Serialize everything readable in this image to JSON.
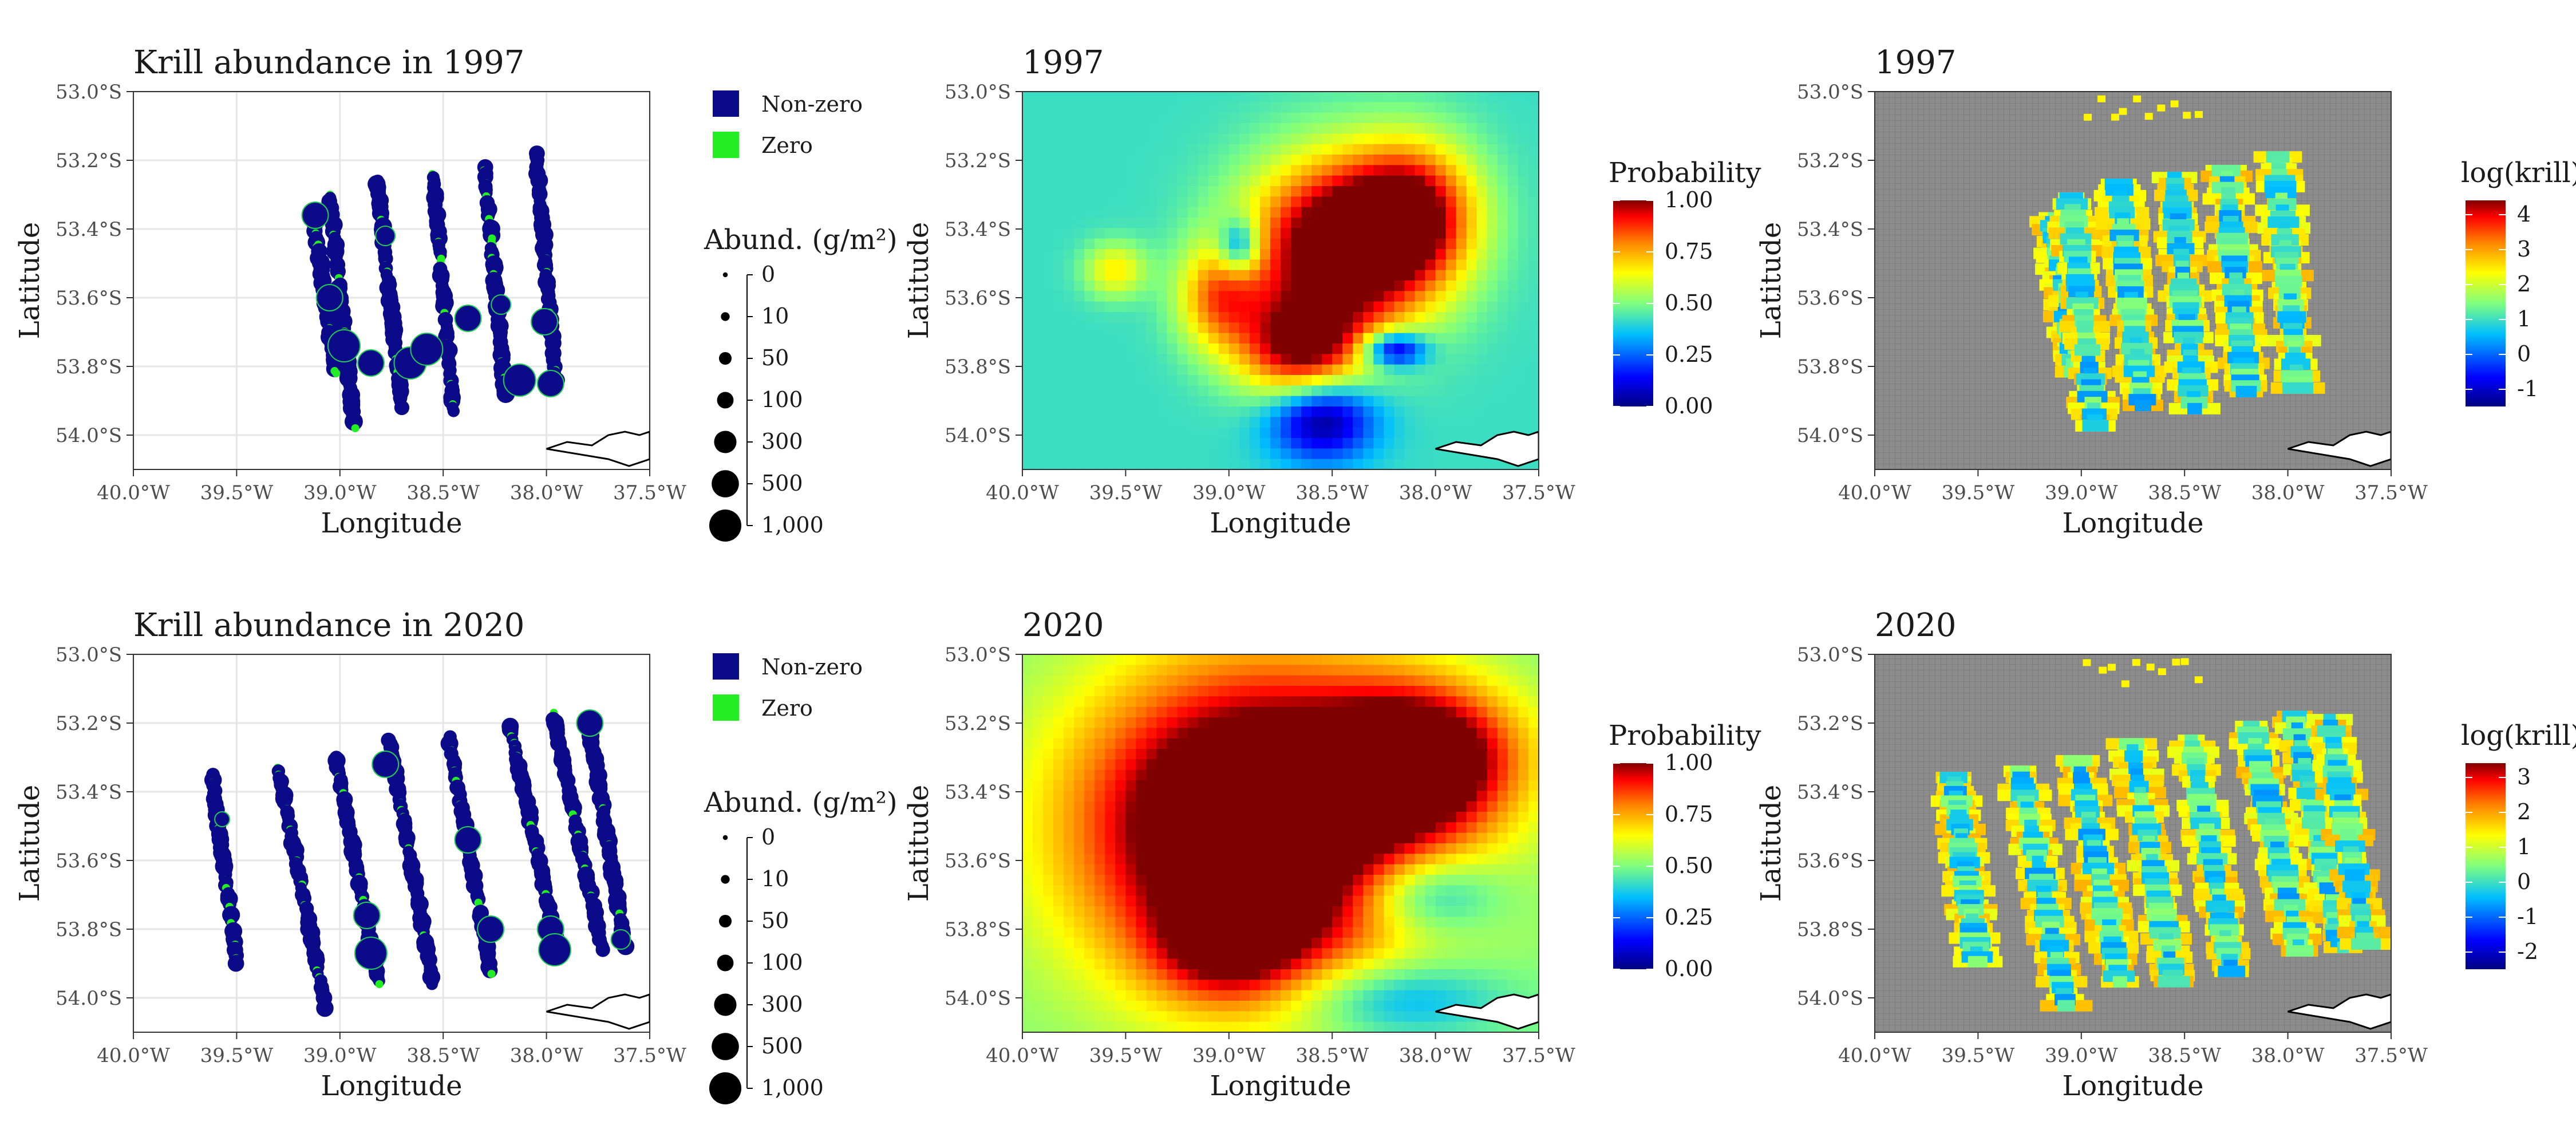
{
  "axes": {
    "x_ticks": [
      "40.0°W",
      "39.5°W",
      "39.0°W",
      "38.5°W",
      "38.0°W",
      "37.5°W"
    ],
    "y_ticks": [
      "53.0°S",
      "53.2°S",
      "53.4°S",
      "53.6°S",
      "53.8°S",
      "54.0°S"
    ],
    "xlabel": "Longitude",
    "ylabel": "Latitude"
  },
  "legend_points": {
    "nonzero": "Non-zero",
    "zero": "Zero",
    "size_title": "Abund. (g/m²)",
    "size_labels": [
      "0",
      "10",
      "50",
      "100",
      "300",
      "500",
      "1,000"
    ]
  },
  "legend_prob": {
    "title": "Probability",
    "ticks": [
      "1.00",
      "0.75",
      "0.50",
      "0.25",
      "0.00"
    ]
  },
  "legend_krill_1997": {
    "title": "log(krill)",
    "ticks": [
      "4",
      "3",
      "2",
      "1",
      "0",
      "-1"
    ]
  },
  "legend_krill_2020": {
    "title": "log(krill)",
    "ticks": [
      "3",
      "2",
      "1",
      "0",
      "-1",
      "-2"
    ]
  },
  "colors": {
    "nonzero": "#0b0b8a",
    "zero": "#22ee22",
    "grey_bg": "#8c8c8c",
    "ramp": [
      "#00007f",
      "#0000ff",
      "#00bfff",
      "#7fff7f",
      "#ffff00",
      "#ff7f00",
      "#ff0000",
      "#7f0000"
    ]
  },
  "chart_data": [
    {
      "type": "scatter",
      "title": "Krill abundance in 1997",
      "xlabel": "Longitude",
      "ylabel": "Latitude",
      "xlim": [
        -40.0,
        -37.5
      ],
      "ylim": [
        -54.1,
        -53.0
      ],
      "transects": [
        {
          "lon0": -39.13,
          "lat0": -53.36,
          "lon1": -39.02,
          "lat1": -53.82
        },
        {
          "lon0": -39.05,
          "lat0": -53.3,
          "lon1": -38.93,
          "lat1": -53.98
        },
        {
          "lon0": -38.82,
          "lat0": -53.26,
          "lon1": -38.7,
          "lat1": -53.92
        },
        {
          "lon0": -38.55,
          "lat0": -53.24,
          "lon1": -38.45,
          "lat1": -53.93
        },
        {
          "lon0": -38.3,
          "lat0": -53.22,
          "lon1": -38.2,
          "lat1": -53.88
        },
        {
          "lon0": -38.05,
          "lat0": -53.18,
          "lon1": -37.95,
          "lat1": -53.87
        }
      ],
      "big_points": [
        {
          "lon": -39.12,
          "lat": -53.36,
          "abund": 300
        },
        {
          "lon": -39.05,
          "lat": -53.6,
          "abund": 300
        },
        {
          "lon": -38.98,
          "lat": -53.74,
          "abund": 500
        },
        {
          "lon": -38.85,
          "lat": -53.79,
          "abund": 300
        },
        {
          "lon": -38.78,
          "lat": -53.42,
          "abund": 100
        },
        {
          "lon": -38.66,
          "lat": -53.79,
          "abund": 500
        },
        {
          "lon": -38.58,
          "lat": -53.75,
          "abund": 500
        },
        {
          "lon": -38.38,
          "lat": -53.66,
          "abund": 300
        },
        {
          "lon": -38.22,
          "lat": -53.62,
          "abund": 100
        },
        {
          "lon": -38.01,
          "lat": -53.67,
          "abund": 300
        },
        {
          "lon": -38.13,
          "lat": -53.84,
          "abund": 500
        },
        {
          "lon": -37.98,
          "lat": -53.85,
          "abund": 300
        }
      ]
    },
    {
      "type": "heatmap",
      "title": "1997",
      "variable": "Probability",
      "xlim": [
        -40.0,
        -37.5
      ],
      "ylim": [
        -54.1,
        -53.0
      ],
      "zlim": [
        0,
        1
      ]
    },
    {
      "type": "heatmap",
      "title": "1997",
      "variable": "log(krill)",
      "xlim": [
        -40.0,
        -37.5
      ],
      "ylim": [
        -54.1,
        -53.0
      ],
      "zlim": [
        -1.5,
        4.3
      ]
    },
    {
      "type": "scatter",
      "title": "Krill abundance in 2020",
      "xlabel": "Longitude",
      "ylabel": "Latitude",
      "xlim": [
        -40.0,
        -37.5
      ],
      "ylim": [
        -54.1,
        -53.0
      ],
      "transects": [
        {
          "lon0": -39.62,
          "lat0": -53.35,
          "lon1": -39.5,
          "lat1": -53.9
        },
        {
          "lon0": -39.3,
          "lat0": -53.33,
          "lon1": -39.07,
          "lat1": -54.03
        },
        {
          "lon0": -39.02,
          "lat0": -53.3,
          "lon1": -38.81,
          "lat1": -53.96
        },
        {
          "lon0": -38.76,
          "lat0": -53.25,
          "lon1": -38.55,
          "lat1": -53.96
        },
        {
          "lon0": -38.47,
          "lat0": -53.24,
          "lon1": -38.27,
          "lat1": -53.93
        },
        {
          "lon0": -38.18,
          "lat0": -53.2,
          "lon1": -37.94,
          "lat1": -53.87
        },
        {
          "lon0": -37.97,
          "lat0": -53.17,
          "lon1": -37.73,
          "lat1": -53.86
        },
        {
          "lon0": -37.8,
          "lat0": -53.18,
          "lon1": -37.62,
          "lat1": -53.85
        }
      ],
      "big_points": [
        {
          "lon": -39.57,
          "lat": -53.48,
          "abund": 50
        },
        {
          "lon": -38.87,
          "lat": -53.76,
          "abund": 300
        },
        {
          "lon": -38.85,
          "lat": -53.87,
          "abund": 500
        },
        {
          "lon": -38.78,
          "lat": -53.32,
          "abund": 300
        },
        {
          "lon": -38.38,
          "lat": -53.54,
          "abund": 300
        },
        {
          "lon": -38.27,
          "lat": -53.8,
          "abund": 300
        },
        {
          "lon": -37.98,
          "lat": -53.8,
          "abund": 300
        },
        {
          "lon": -37.96,
          "lat": -53.86,
          "abund": 500
        },
        {
          "lon": -37.79,
          "lat": -53.2,
          "abund": 300
        },
        {
          "lon": -37.64,
          "lat": -53.83,
          "abund": 100
        }
      ]
    },
    {
      "type": "heatmap",
      "title": "2020",
      "variable": "Probability",
      "xlim": [
        -40.0,
        -37.5
      ],
      "ylim": [
        -54.1,
        -53.0
      ],
      "zlim": [
        0,
        1
      ]
    },
    {
      "type": "heatmap",
      "title": "2020",
      "variable": "log(krill)",
      "xlim": [
        -40.0,
        -37.5
      ],
      "ylim": [
        -54.1,
        -53.0
      ],
      "zlim": [
        -2.3,
        3.9
      ]
    }
  ]
}
